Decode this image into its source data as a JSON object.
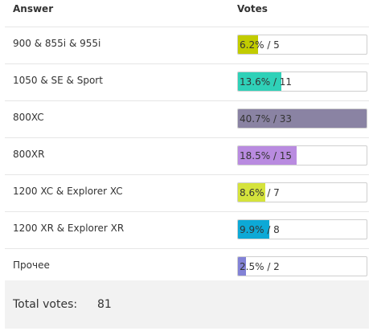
{
  "header": {
    "answer": "Answer",
    "votes": "Votes"
  },
  "rows": [
    {
      "label": "900 & 855i & 955i",
      "percent": "6.2%",
      "count": "5",
      "fraction": 0.155,
      "color": "#c2cc00"
    },
    {
      "label": "1050 & SE & Sport",
      "percent": "13.6%",
      "count": "11",
      "fraction": 0.335,
      "color": "#2fd1b8"
    },
    {
      "label": "800XC",
      "percent": "40.7%",
      "count": "33",
      "fraction": 1.0,
      "color": "#8a83a3"
    },
    {
      "label": "800XR",
      "percent": "18.5%",
      "count": "15",
      "fraction": 0.455,
      "color": "#b98be0"
    },
    {
      "label": "1200 XC & Explorer XC",
      "percent": "8.6%",
      "count": "7",
      "fraction": 0.21,
      "color": "#d5e33c"
    },
    {
      "label": "1200 XR & Explorer XR",
      "percent": "9.9%",
      "count": "8",
      "fraction": 0.245,
      "color": "#0da9d6"
    },
    {
      "label": "Прочее",
      "percent": "2.5%",
      "count": "2",
      "fraction": 0.062,
      "color": "#8282d6"
    }
  ],
  "total": {
    "label": "Total votes:",
    "value": "81"
  }
}
